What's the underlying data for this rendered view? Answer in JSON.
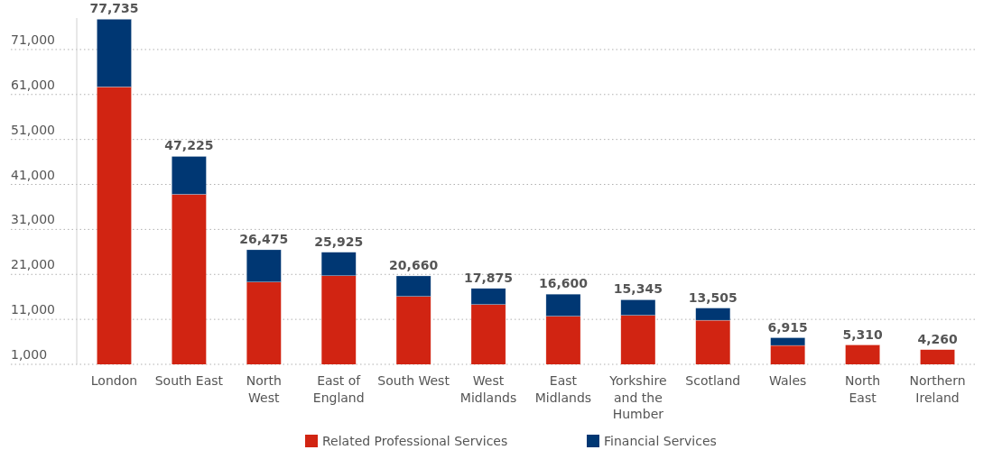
{
  "chart_data": {
    "type": "bar",
    "stacked": true,
    "categories": [
      "London",
      "South East",
      "North\nWest",
      "East of\nEngland",
      "South West",
      "West\nMidlands",
      "East\nMidlands",
      "Yorkshire\nand the\nHumber",
      "Scotland",
      "Wales",
      "North\nEast",
      "Northern\nIreland"
    ],
    "series": [
      {
        "name": "Related Professional Services",
        "color": "#d12412",
        "values": [
          62700,
          38800,
          19300,
          20700,
          16100,
          14300,
          11700,
          11900,
          10800,
          5200,
          5310,
          4260
        ]
      },
      {
        "name": "Financial Services",
        "color": "#003773",
        "values": [
          15035,
          8425,
          7175,
          5225,
          4560,
          3575,
          4900,
          3445,
          2705,
          1715,
          null,
          null
        ]
      }
    ],
    "totals": [
      "77,735",
      "47,225",
      "26,475",
      "25,925",
      "20,660",
      "17,875",
      "16,600",
      "15,345",
      "13,505",
      "6,915",
      "5,310",
      "4,260"
    ],
    "ylim": [
      1000,
      78000
    ],
    "yticks": [
      {
        "value": 1000,
        "label": "1,000"
      },
      {
        "value": 11000,
        "label": "11,000"
      },
      {
        "value": 21000,
        "label": "21,000"
      },
      {
        "value": 31000,
        "label": "31,000"
      },
      {
        "value": 41000,
        "label": "41,000"
      },
      {
        "value": 51000,
        "label": "51,000"
      },
      {
        "value": 61000,
        "label": "61,000"
      },
      {
        "value": 71000,
        "label": "71,000"
      }
    ],
    "grid": "y",
    "legend": "bottom"
  }
}
